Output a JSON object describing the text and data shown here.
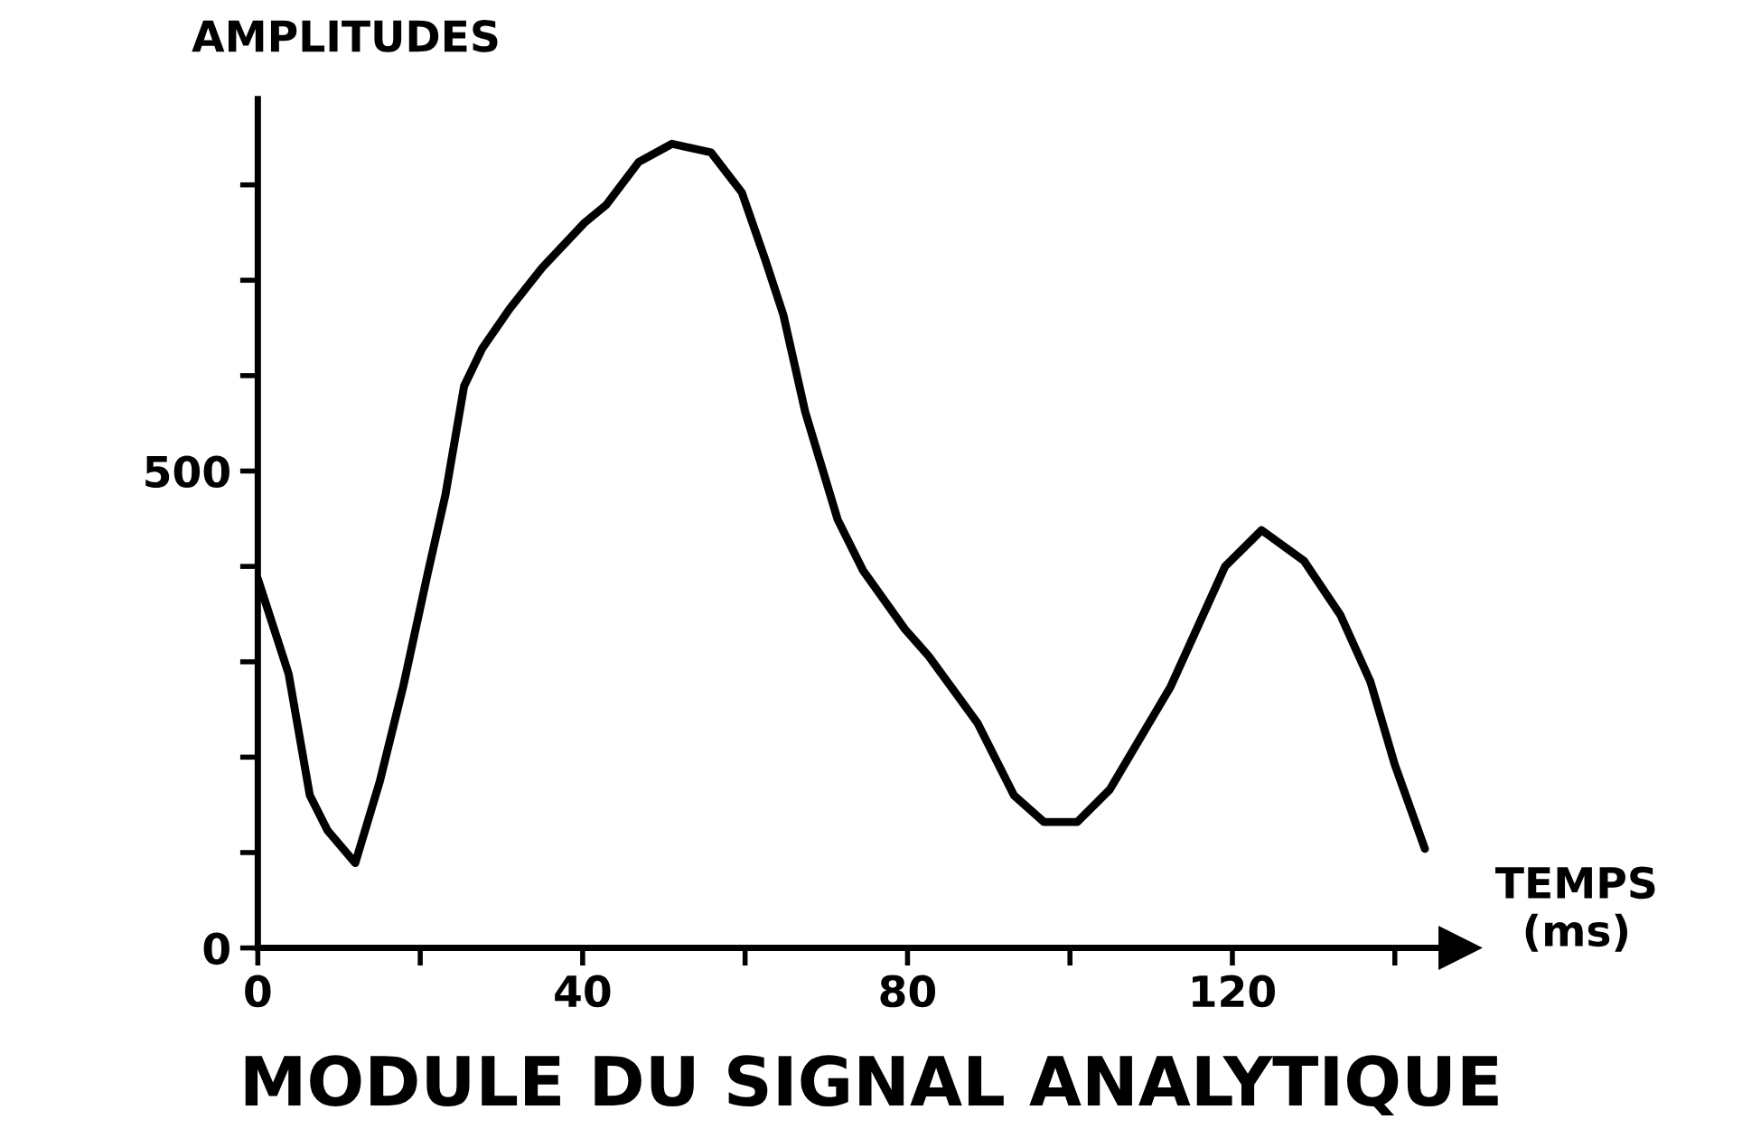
{
  "chart_data": {
    "type": "line",
    "title": "MODULE DU SIGNAL ANALYTIQUE",
    "xlabel": "TEMPS\n(ms)",
    "ylabel": "AMPLITUDES",
    "x": [
      0,
      3.8,
      6.4,
      8.6,
      12,
      15,
      17.9,
      20.9,
      23.1,
      25.4,
      27.6,
      31,
      35,
      40.2,
      42.9,
      46.9,
      51,
      55.8,
      59.6,
      62.5,
      64.7,
      67.4,
      71.4,
      74.5,
      79.7,
      82.6,
      88.6,
      93.1,
      96.8,
      100.9,
      104.9,
      112.4,
      119.1,
      123.6,
      128.8,
      133.3,
      137,
      140,
      143.7
    ],
    "series": [
      {
        "color": "#000000",
        "values": [
          387,
          287,
          160,
          123,
          89,
          174,
          274,
          392,
          475,
          589,
          628,
          670,
          713,
          760,
          779,
          824,
          843,
          834,
          792,
          721,
          664,
          562,
          449,
          396,
          334,
          306,
          236,
          160,
          132,
          132,
          166,
          274,
          400,
          438,
          406,
          349,
          279,
          192,
          104
        ]
      }
    ],
    "xlim": [
      0,
      148
    ],
    "ylim": [
      0,
      890
    ],
    "xticks": [
      0,
      {
        "value": 20,
        "label": null
      },
      40,
      {
        "value": 60,
        "label": null
      },
      80,
      {
        "value": 100,
        "label": null
      },
      120,
      {
        "value": 140,
        "label": null
      }
    ],
    "yticks": [
      0,
      {
        "value": 100,
        "label": null
      },
      {
        "value": 200,
        "label": null
      },
      {
        "value": 300,
        "label": null
      },
      {
        "value": 400,
        "label": null
      },
      500,
      {
        "value": 600,
        "label": null
      },
      {
        "value": 700,
        "label": null
      },
      {
        "value": 800,
        "label": null
      }
    ],
    "grid": false,
    "legend": false,
    "marker": "none",
    "line_style": "solid"
  }
}
